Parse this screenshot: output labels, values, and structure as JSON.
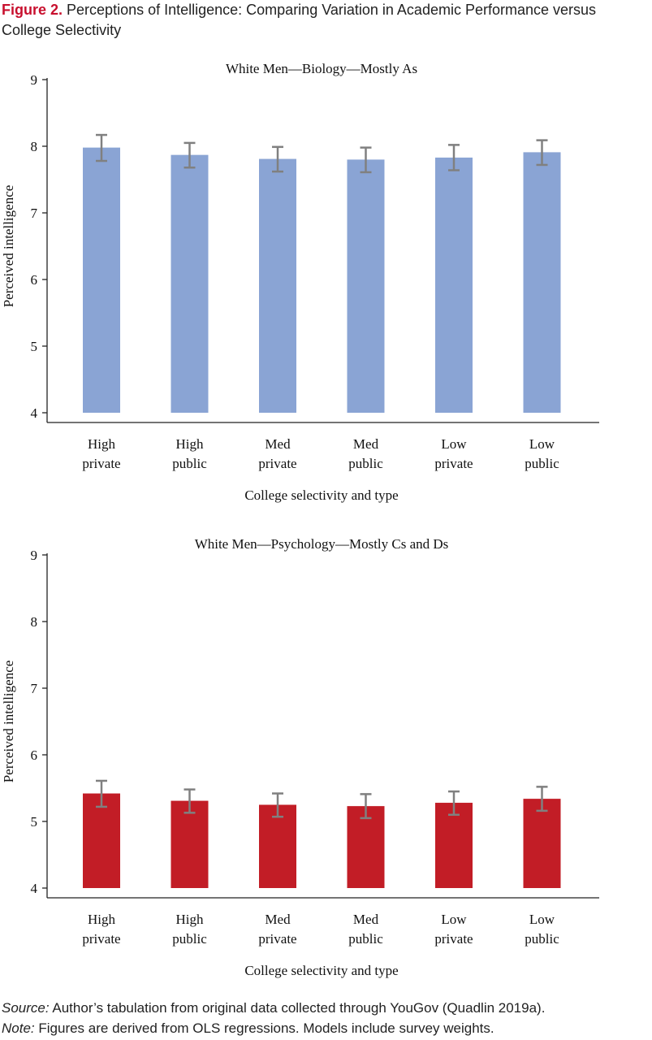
{
  "figure": {
    "label": "Figure 2.",
    "title": "Perceptions of Intelligence: Comparing Variation in Academic Performance versus College Selectivity"
  },
  "notes": {
    "source_label": "Source:",
    "source_text": "Author’s tabulation from original data collected through YouGov (Quadlin 2019a).",
    "note_label": "Note:",
    "note_text": "Figures are derived from OLS regressions. Models include survey weights."
  },
  "colors": {
    "blue_bar": "#8aa4d4",
    "red_bar": "#c21d26",
    "error_bar": "#808080",
    "axis": "#222222"
  },
  "chart_data": [
    {
      "type": "bar",
      "title": "White Men—Biology—Mostly As",
      "xlabel": "College selectivity and type",
      "ylabel": "Perceived intelligence",
      "ylim": [
        4,
        9
      ],
      "yticks": [
        "4",
        "5",
        "6",
        "7",
        "8",
        "9"
      ],
      "categories": [
        [
          "High",
          "private"
        ],
        [
          "High",
          "public"
        ],
        [
          "Med",
          "private"
        ],
        [
          "Med",
          "public"
        ],
        [
          "Low",
          "private"
        ],
        [
          "Low",
          "public"
        ]
      ],
      "values": [
        7.98,
        7.87,
        7.81,
        7.8,
        7.83,
        7.91
      ],
      "error_low": [
        7.78,
        7.68,
        7.62,
        7.61,
        7.64,
        7.72
      ],
      "error_high": [
        8.17,
        8.05,
        7.99,
        7.98,
        8.02,
        8.09
      ],
      "color": "#8aa4d4"
    },
    {
      "type": "bar",
      "title": "White Men—Psychology—Mostly Cs and Ds",
      "xlabel": "College selectivity and type",
      "ylabel": "Perceived intelligence",
      "ylim": [
        4,
        9
      ],
      "yticks": [
        "4",
        "5",
        "6",
        "7",
        "8",
        "9"
      ],
      "categories": [
        [
          "High",
          "private"
        ],
        [
          "High",
          "public"
        ],
        [
          "Med",
          "private"
        ],
        [
          "Med",
          "public"
        ],
        [
          "Low",
          "private"
        ],
        [
          "Low",
          "public"
        ]
      ],
      "values": [
        5.42,
        5.31,
        5.25,
        5.23,
        5.28,
        5.34
      ],
      "error_low": [
        5.22,
        5.13,
        5.07,
        5.05,
        5.1,
        5.16
      ],
      "error_high": [
        5.61,
        5.48,
        5.42,
        5.41,
        5.45,
        5.52
      ],
      "color": "#c21d26"
    }
  ]
}
